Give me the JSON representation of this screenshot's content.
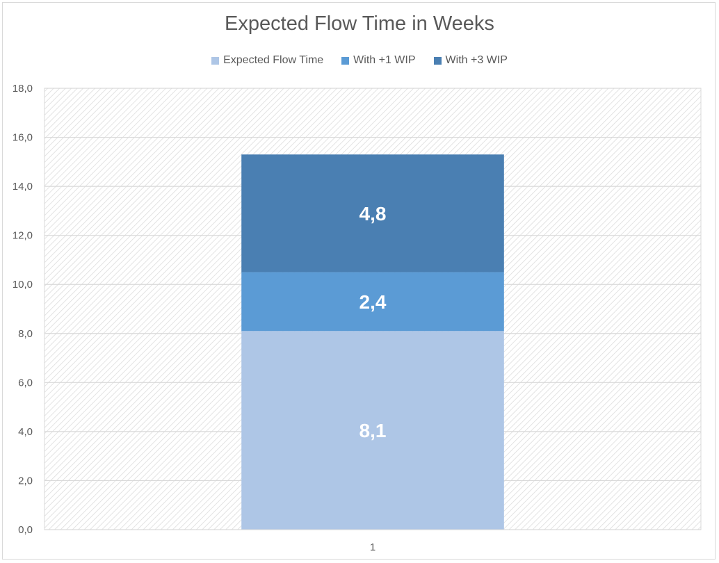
{
  "chart_data": {
    "type": "bar",
    "stacked": true,
    "title": "Expected Flow Time in Weeks",
    "categories": [
      "1"
    ],
    "series": [
      {
        "name": "Expected Flow Time",
        "values": [
          8.1
        ],
        "label": "8,1",
        "color": "#aec6e6"
      },
      {
        "name": "With +1 WIP",
        "values": [
          2.4
        ],
        "label": "2,4",
        "color": "#5b9bd5"
      },
      {
        "name": "With +3 WIP",
        "values": [
          4.8
        ],
        "label": "4,8",
        "color": "#4a7fb2"
      }
    ],
    "ylim": [
      0,
      18
    ],
    "yticks": [
      {
        "value": 0,
        "label": "0,0"
      },
      {
        "value": 2,
        "label": "2,0"
      },
      {
        "value": 4,
        "label": "4,0"
      },
      {
        "value": 6,
        "label": "6,0"
      },
      {
        "value": 8,
        "label": "8,0"
      },
      {
        "value": 10,
        "label": "10,0"
      },
      {
        "value": 12,
        "label": "12,0"
      },
      {
        "value": 14,
        "label": "14,0"
      },
      {
        "value": 16,
        "label": "16,0"
      },
      {
        "value": 18,
        "label": "18,0"
      }
    ],
    "grid": true,
    "legend_position": "top",
    "plot_background": "diagonal-hatch",
    "gridline_color": "#d9d9d9"
  }
}
